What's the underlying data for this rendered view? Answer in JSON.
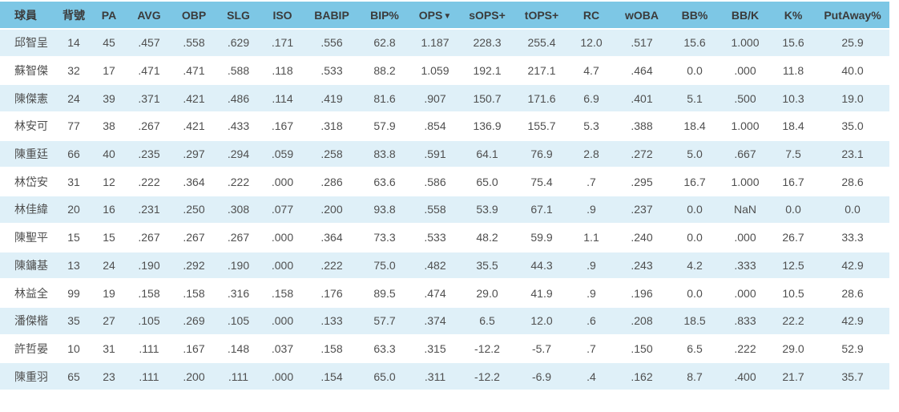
{
  "colors": {
    "header_bg": "#7dc7e5",
    "header_text": "#3b3b3b",
    "row_alt_bg": "#dff0f8",
    "row_bg": "#ffffff",
    "cell_text": "#4f4f4f"
  },
  "table": {
    "columns": [
      {
        "key": "player",
        "label": "球員"
      },
      {
        "key": "number",
        "label": "背號"
      },
      {
        "key": "pa",
        "label": "PA"
      },
      {
        "key": "avg",
        "label": "AVG"
      },
      {
        "key": "obp",
        "label": "OBP"
      },
      {
        "key": "slg",
        "label": "SLG"
      },
      {
        "key": "iso",
        "label": "ISO"
      },
      {
        "key": "babip",
        "label": "BABIP"
      },
      {
        "key": "bip_pct",
        "label": "BIP%"
      },
      {
        "key": "ops",
        "label": "OPS",
        "sort": "desc",
        "sort_icon": "▼"
      },
      {
        "key": "sops_plus",
        "label": "sOPS+"
      },
      {
        "key": "tops_plus",
        "label": "tOPS+"
      },
      {
        "key": "rc",
        "label": "RC"
      },
      {
        "key": "woba",
        "label": "wOBA"
      },
      {
        "key": "bb_pct",
        "label": "BB%"
      },
      {
        "key": "bb_k",
        "label": "BB/K"
      },
      {
        "key": "k_pct",
        "label": "K%"
      },
      {
        "key": "putaway_pct",
        "label": "PutAway%"
      }
    ],
    "rows": [
      [
        "邱智呈",
        "14",
        "45",
        ".457",
        ".558",
        ".629",
        ".171",
        ".556",
        "62.8",
        "1.187",
        "228.3",
        "255.4",
        "12.0",
        ".517",
        "15.6",
        "1.000",
        "15.6",
        "25.9"
      ],
      [
        "蘇智傑",
        "32",
        "17",
        ".471",
        ".471",
        ".588",
        ".118",
        ".533",
        "88.2",
        "1.059",
        "192.1",
        "217.1",
        "4.7",
        ".464",
        "0.0",
        ".000",
        "11.8",
        "40.0"
      ],
      [
        "陳傑憲",
        "24",
        "39",
        ".371",
        ".421",
        ".486",
        ".114",
        ".419",
        "81.6",
        ".907",
        "150.7",
        "171.6",
        "6.9",
        ".401",
        "5.1",
        ".500",
        "10.3",
        "19.0"
      ],
      [
        "林安可",
        "77",
        "38",
        ".267",
        ".421",
        ".433",
        ".167",
        ".318",
        "57.9",
        ".854",
        "136.9",
        "155.7",
        "5.3",
        ".388",
        "18.4",
        "1.000",
        "18.4",
        "35.0"
      ],
      [
        "陳重廷",
        "66",
        "40",
        ".235",
        ".297",
        ".294",
        ".059",
        ".258",
        "83.8",
        ".591",
        "64.1",
        "76.9",
        "2.8",
        ".272",
        "5.0",
        ".667",
        "7.5",
        "23.1"
      ],
      [
        "林岱安",
        "31",
        "12",
        ".222",
        ".364",
        ".222",
        ".000",
        ".286",
        "63.6",
        ".586",
        "65.0",
        "75.4",
        ".7",
        ".295",
        "16.7",
        "1.000",
        "16.7",
        "28.6"
      ],
      [
        "林佳緯",
        "20",
        "16",
        ".231",
        ".250",
        ".308",
        ".077",
        ".200",
        "93.8",
        ".558",
        "53.9",
        "67.1",
        ".9",
        ".237",
        "0.0",
        "NaN",
        "0.0",
        "0.0"
      ],
      [
        "陳聖平",
        "15",
        "15",
        ".267",
        ".267",
        ".267",
        ".000",
        ".364",
        "73.3",
        ".533",
        "48.2",
        "59.9",
        "1.1",
        ".240",
        "0.0",
        ".000",
        "26.7",
        "33.3"
      ],
      [
        "陳鏞基",
        "13",
        "24",
        ".190",
        ".292",
        ".190",
        ".000",
        ".222",
        "75.0",
        ".482",
        "35.5",
        "44.3",
        ".9",
        ".243",
        "4.2",
        ".333",
        "12.5",
        "42.9"
      ],
      [
        "林益全",
        "99",
        "19",
        ".158",
        ".158",
        ".316",
        ".158",
        ".176",
        "89.5",
        ".474",
        "29.0",
        "41.9",
        ".9",
        ".196",
        "0.0",
        ".000",
        "10.5",
        "28.6"
      ],
      [
        "潘傑楷",
        "35",
        "27",
        ".105",
        ".269",
        ".105",
        ".000",
        ".133",
        "57.7",
        ".374",
        "6.5",
        "12.0",
        ".6",
        ".208",
        "18.5",
        ".833",
        "22.2",
        "42.9"
      ],
      [
        "許哲晏",
        "10",
        "31",
        ".111",
        ".167",
        ".148",
        ".037",
        ".158",
        "63.3",
        ".315",
        "-12.2",
        "-5.7",
        ".7",
        ".150",
        "6.5",
        ".222",
        "29.0",
        "52.9"
      ],
      [
        "陳重羽",
        "65",
        "23",
        ".111",
        ".200",
        ".111",
        ".000",
        ".154",
        "65.0",
        ".311",
        "-12.2",
        "-6.9",
        ".4",
        ".162",
        "8.7",
        ".400",
        "21.7",
        "35.7"
      ]
    ]
  }
}
